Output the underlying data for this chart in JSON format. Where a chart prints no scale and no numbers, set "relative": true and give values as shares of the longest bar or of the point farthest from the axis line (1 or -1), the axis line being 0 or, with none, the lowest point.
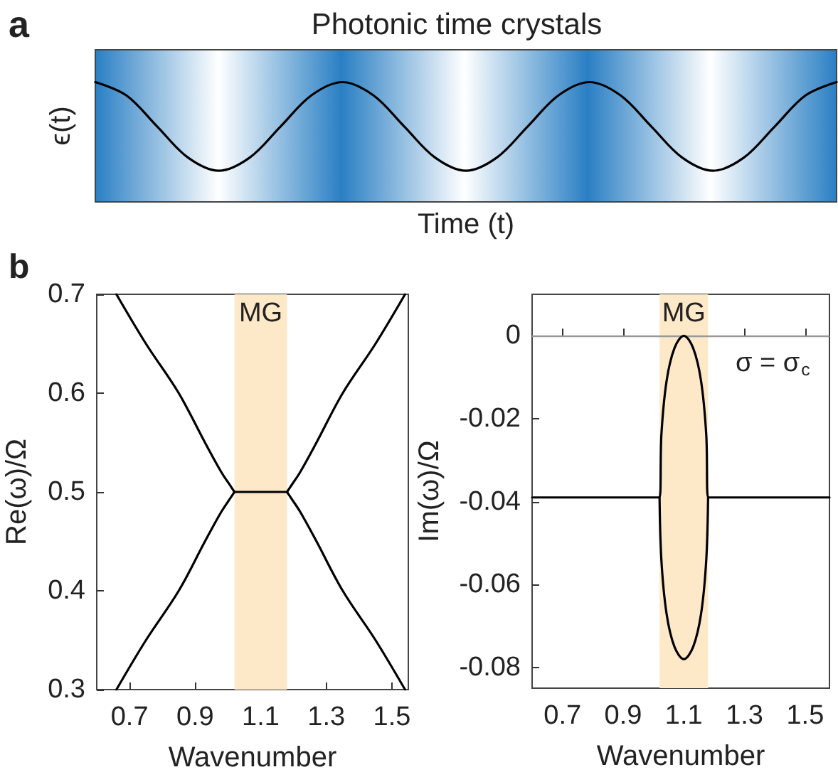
{
  "chart_data": [
    {
      "type": "line",
      "title": "Photonic time crystals",
      "xlabel": "Time (t)",
      "ylabel": "ϵ(t)",
      "relative": true,
      "tick_labels": false,
      "marker": "none",
      "color": "#000000",
      "annotations": [
        "a"
      ],
      "categories": [
        null,
        null,
        null,
        null,
        null,
        null,
        null,
        null,
        null,
        null,
        null,
        null,
        null,
        null,
        null,
        null,
        null,
        null,
        null,
        null,
        null,
        null,
        null,
        null,
        null
      ],
      "values": [
        1,
        0.89,
        0.63,
        0.37,
        0.26,
        0.37,
        0.63,
        0.89,
        1,
        0.89,
        0.63,
        0.37,
        0.26,
        0.37,
        0.63,
        0.89,
        1,
        0.89,
        0.63,
        0.37,
        0.26,
        0.37,
        0.63,
        0.89,
        1
      ]
    },
    {
      "type": "line",
      "xlabel": "Wavenumber",
      "ylabel": "Re(ω)/Ω",
      "marker": "none",
      "annotations": [
        "b"
      ],
      "xlim": [
        0.6,
        1.55
      ],
      "xticks": [
        0.7,
        0.9,
        1.1,
        1.3,
        1.5
      ],
      "ylim": [
        0.3,
        0.7
      ],
      "yticks": [
        0.3,
        0.4,
        0.5,
        0.6,
        0.7
      ],
      "bands": [
        {
          "axis": "x",
          "from": 1.02,
          "to": 1.18,
          "label": "MG",
          "color": "#fde9c8"
        }
      ],
      "series": [
        {
          "color": "#000000",
          "x": [
            0.66,
            0.75,
            0.85,
            0.93,
            0.98,
            1.01,
            1.02
          ],
          "values": [
            0.7,
            0.65,
            0.6,
            0.55,
            0.52,
            0.505,
            0.5
          ]
        },
        {
          "color": "#000000",
          "x": [
            0.66,
            0.75,
            0.85,
            0.93,
            0.98,
            1.01,
            1.02
          ],
          "values": [
            0.3,
            0.35,
            0.4,
            0.45,
            0.48,
            0.495,
            0.5
          ]
        },
        {
          "color": "#000000",
          "x": [
            1.02,
            1.18
          ],
          "values": [
            0.5,
            0.5
          ]
        },
        {
          "color": "#000000",
          "x": [
            1.54,
            1.45,
            1.35,
            1.27,
            1.22,
            1.19,
            1.18
          ],
          "values": [
            0.7,
            0.65,
            0.6,
            0.55,
            0.52,
            0.505,
            0.5
          ]
        },
        {
          "color": "#000000",
          "x": [
            1.54,
            1.45,
            1.35,
            1.27,
            1.22,
            1.19,
            1.18
          ],
          "values": [
            0.3,
            0.35,
            0.4,
            0.45,
            0.48,
            0.495,
            0.5
          ]
        }
      ]
    },
    {
      "type": "line",
      "xlabel": "Wavenumber",
      "ylabel": "Im(ω)/Ω",
      "marker": "none",
      "annotations": [
        "σ = σ$_{c}$"
      ],
      "xlim": [
        0.6,
        1.58
      ],
      "xticks": [
        0.7,
        0.9,
        1.1,
        1.3,
        1.5
      ],
      "ylim": [
        -0.085,
        0.01
      ],
      "yticks": [
        -0.08,
        -0.06,
        -0.04,
        -0.02,
        0
      ],
      "bands": [
        {
          "axis": "x",
          "from": 1.02,
          "to": 1.18,
          "label": "MG",
          "color": "#fde9c8"
        }
      ],
      "ref_lines": [
        {
          "axis": "y",
          "value": 0,
          "color": "#999999"
        }
      ],
      "series": [
        {
          "color": "#000000",
          "x": [
            0.6,
            1.02,
            1.026,
            1.043,
            1.069,
            1.1,
            1.131,
            1.157,
            1.174,
            1.18,
            1.58
          ],
          "values": [
            -0.039,
            -0.039,
            -0.024,
            -0.011,
            -0.003,
            0,
            -0.003,
            -0.011,
            -0.024,
            -0.039,
            -0.039
          ]
        },
        {
          "color": "#000000",
          "x": [
            1.02,
            1.026,
            1.043,
            1.069,
            1.1,
            1.131,
            1.157,
            1.174,
            1.18
          ],
          "values": [
            -0.039,
            -0.054,
            -0.067,
            -0.075,
            -0.078,
            -0.075,
            -0.067,
            -0.054,
            -0.039
          ]
        }
      ]
    }
  ]
}
